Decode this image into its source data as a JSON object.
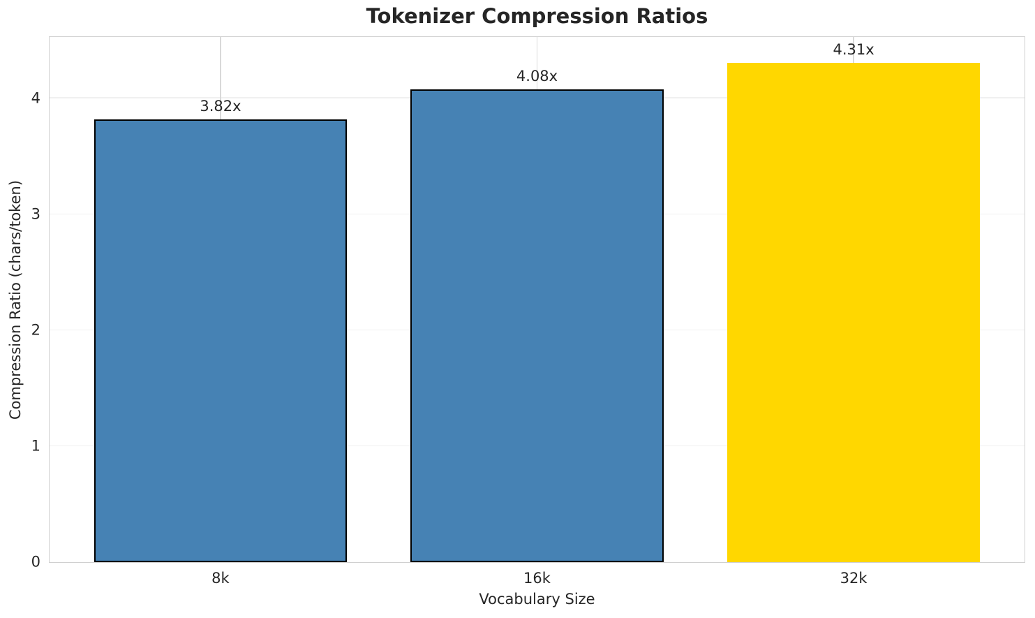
{
  "chart_data": {
    "type": "bar",
    "title": "Tokenizer Compression Ratios",
    "xlabel": "Vocabulary Size",
    "ylabel": "Compression Ratio (chars/token)",
    "categories": [
      "8k",
      "16k",
      "32k"
    ],
    "values": [
      3.82,
      4.08,
      4.31
    ],
    "bar_labels": [
      "3.82x",
      "4.08x",
      "4.31x"
    ],
    "bar_colors": [
      "#4682B4",
      "#4682B4",
      "#FFD700"
    ],
    "bar_edge_colors": [
      "#000000",
      "#000000",
      "none"
    ],
    "bar_width_fraction": 0.8,
    "ylim": [
      0,
      4.53
    ],
    "yticks": [
      0,
      1,
      2,
      3,
      4
    ],
    "grid": "both",
    "legend_position": "none"
  },
  "colors": {
    "blue_bar": "#4682B4",
    "gold_bar": "#FFD700",
    "bar_edge": "#000000",
    "grid_horizontal": "#f0f0f0",
    "grid_vertical": "#d9d9d9",
    "spine": "#d0d0d0",
    "text": "#262626",
    "background": "#ffffff"
  }
}
